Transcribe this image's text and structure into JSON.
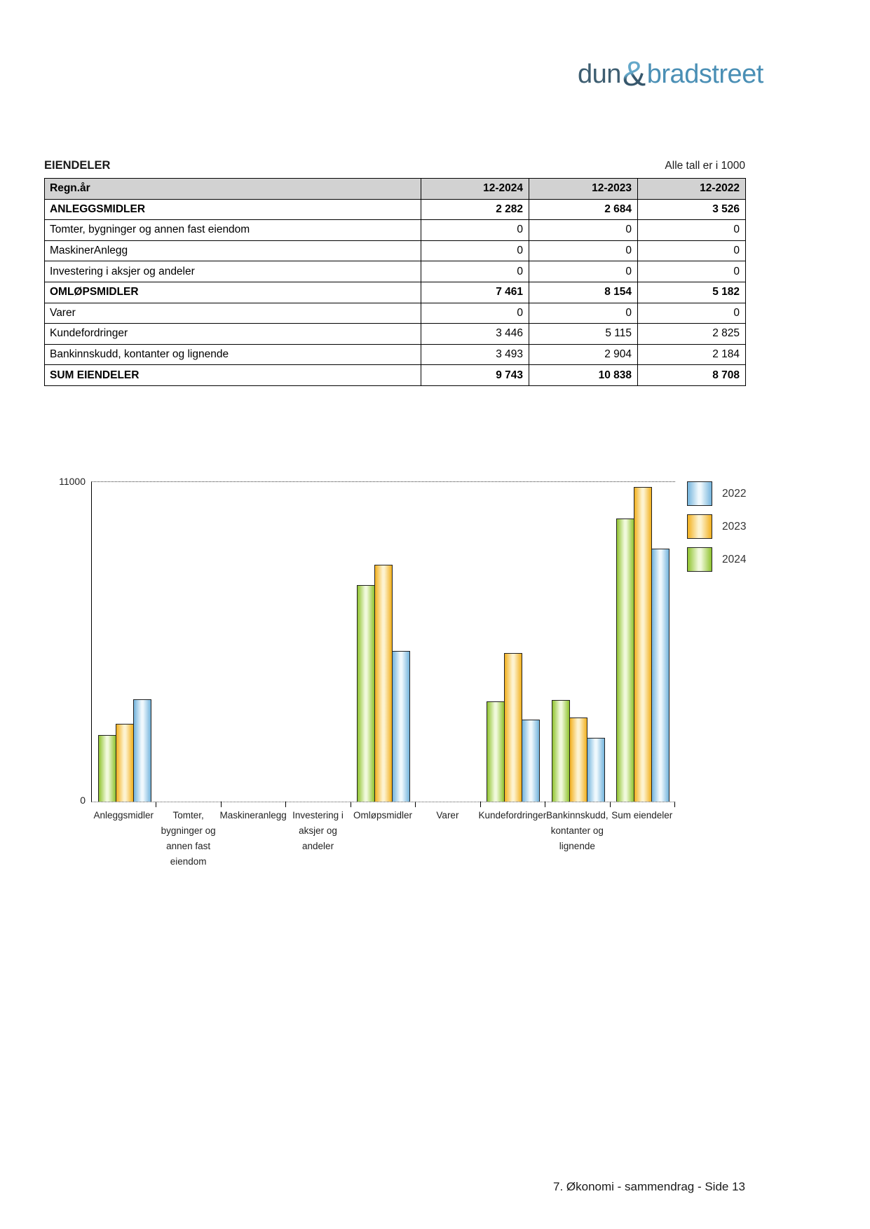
{
  "page": {
    "title": "EIENDELER",
    "units_note": "Alle tall er i 1000",
    "footer": "7. Økonomi - sammendrag - Side 13"
  },
  "logo": {
    "word1": "dun",
    "ampersand": "&",
    "word2": "bradstreet",
    "word1_color": "#3e5e71",
    "word2_color": "#4a8fb5"
  },
  "table": {
    "header": [
      "Regn.år",
      "12-2024",
      "12-2023",
      "12-2022"
    ],
    "rows": [
      {
        "label": "ANLEGGSMIDLER",
        "values": [
          "2 282",
          "2 684",
          "3 526"
        ],
        "bold": true
      },
      {
        "label": "Tomter, bygninger og annen fast eiendom",
        "values": [
          "0",
          "0",
          "0"
        ],
        "bold": false
      },
      {
        "label": "MaskinerAnlegg",
        "values": [
          "0",
          "0",
          "0"
        ],
        "bold": false
      },
      {
        "label": "Investering i aksjer og andeler",
        "values": [
          "0",
          "0",
          "0"
        ],
        "bold": false
      },
      {
        "label": "OMLØPSMIDLER",
        "values": [
          "7 461",
          "8 154",
          "5 182"
        ],
        "bold": true
      },
      {
        "label": "Varer",
        "values": [
          "0",
          "0",
          "0"
        ],
        "bold": false
      },
      {
        "label": "Kundefordringer",
        "values": [
          "3 446",
          "5 115",
          "2 825"
        ],
        "bold": false
      },
      {
        "label": "Bankinnskudd, kontanter og lignende",
        "values": [
          "3 493",
          "2 904",
          "2 184"
        ],
        "bold": false
      },
      {
        "label": "SUM EIENDELER",
        "values": [
          "9 743",
          "10 838",
          "8 708"
        ],
        "bold": true
      }
    ]
  },
  "chart_data": {
    "type": "bar",
    "title": "",
    "ylim": [
      0,
      11000
    ],
    "ytick_labels": [
      {
        "value": 11000,
        "text": "11000"
      },
      {
        "value": 0,
        "text": "0"
      }
    ],
    "grid": "dotted horizontal line at y=11000",
    "legend_position": "right",
    "legend_order": [
      "2022",
      "2023",
      "2024"
    ],
    "categories": [
      "Anleggsmidler",
      "Tomter, bygninger og annen fast eiendom",
      "Maskineranlegg",
      "Investering i aksjer og andeler",
      "Omløpsmidler",
      "Varer",
      "Kundefordringer",
      "Bankinnskudd, kontanter og lignende",
      "Sum eiendeler"
    ],
    "category_label_lines": [
      [
        "Anleggsmidler"
      ],
      [
        "Tomter,",
        "bygninger og",
        "annen fast",
        "eiendom"
      ],
      [
        "Maskineranlegg"
      ],
      [
        "Investering i",
        "aksjer og",
        "andeler"
      ],
      [
        "Omløpsmidler"
      ],
      [
        "Varer"
      ],
      [
        "Kundefordringer"
      ],
      [
        "Bankinnskudd,",
        "kontanter og",
        "lignende"
      ],
      [
        "Sum eiendeler"
      ]
    ],
    "series": [
      {
        "name": "2024",
        "color_edge": "#8fc32f",
        "color_mid": "#f1f9dc",
        "values": [
          2282,
          0,
          0,
          0,
          7461,
          0,
          3446,
          3493,
          9743
        ]
      },
      {
        "name": "2023",
        "color_edge": "#f2b01e",
        "color_mid": "#fdf3d0",
        "values": [
          2684,
          0,
          0,
          0,
          8154,
          0,
          5115,
          2904,
          10838
        ]
      },
      {
        "name": "2022",
        "color_edge": "#74b4dc",
        "color_mid": "#eff8fd",
        "values": [
          3526,
          0,
          0,
          0,
          5182,
          0,
          2825,
          2184,
          8708
        ]
      }
    ]
  }
}
